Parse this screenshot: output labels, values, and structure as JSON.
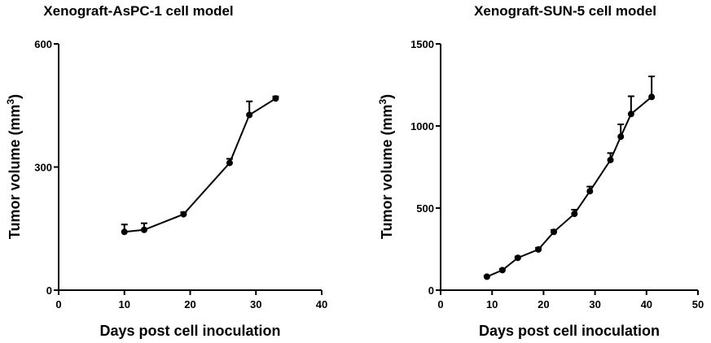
{
  "chart_data": [
    {
      "type": "line",
      "title": "Xenograft-AsPC-1 cell model",
      "xlabel": "Days post cell inoculation",
      "ylabel": "Tumor volume (mm",
      "ylabel_sup": "3",
      "ylabel_end": ")",
      "xlim": [
        0,
        40
      ],
      "ylim": [
        0,
        600
      ],
      "xticks": [
        "0",
        "10",
        "20",
        "30",
        "40"
      ],
      "yticks": [
        "0",
        "300",
        "600"
      ],
      "grid": false,
      "series": [
        {
          "x": [
            10,
            13,
            19,
            26,
            29,
            33
          ],
          "y": [
            142,
            147,
            185,
            310,
            427,
            467
          ],
          "err": [
            18,
            16,
            5,
            10,
            33,
            5
          ]
        }
      ]
    },
    {
      "type": "line",
      "title": "Xenograft-SUN-5 cell model",
      "xlabel": "Days post cell inoculation",
      "ylabel": "Tumor volume (mm",
      "ylabel_sup": "3",
      "ylabel_end": ")",
      "xlim": [
        0,
        50
      ],
      "ylim": [
        0,
        1500
      ],
      "xticks": [
        "0",
        "10",
        "20",
        "30",
        "40",
        "50"
      ],
      "yticks": [
        "0",
        "500",
        "1000",
        "1500"
      ],
      "grid": false,
      "series": [
        {
          "x": [
            9,
            12,
            15,
            19,
            22,
            26,
            29,
            33,
            35,
            37,
            41
          ],
          "y": [
            82,
            122,
            197,
            248,
            355,
            465,
            603,
            793,
            935,
            1073,
            1177
          ],
          "err": [
            5,
            8,
            8,
            10,
            12,
            25,
            28,
            42,
            75,
            108,
            125
          ]
        }
      ]
    }
  ]
}
